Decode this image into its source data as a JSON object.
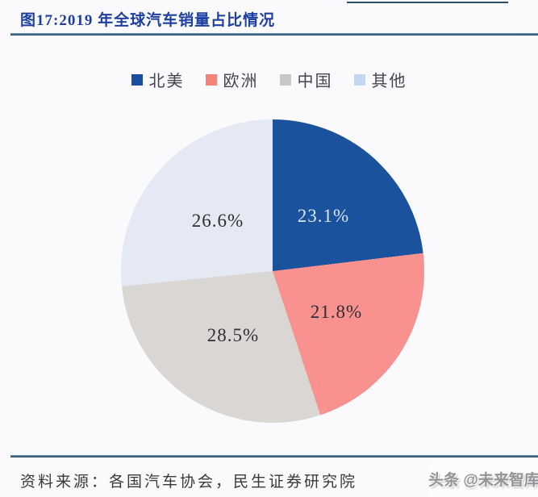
{
  "figure": {
    "title": "图17:2019 年全球汽车销量占比情况",
    "source": "资料来源：各国汽车协会，民生证券研究院",
    "watermark": "头条 @未来智库"
  },
  "legend": {
    "items": [
      {
        "label": "北美",
        "color": "#1c4da0"
      },
      {
        "label": "欧洲",
        "color": "#f4817a"
      },
      {
        "label": "中国",
        "color": "#c8c8ca"
      },
      {
        "label": "其他",
        "color": "#c3d8ee"
      }
    ]
  },
  "chart_data": {
    "type": "pie",
    "title": "2019 年全球汽车销量占比情况",
    "categories": [
      "北美",
      "欧洲",
      "中国",
      "其他"
    ],
    "values": [
      23.1,
      21.8,
      28.5,
      26.6
    ],
    "labels": [
      "23.1%",
      "21.8%",
      "28.5%",
      "26.6%"
    ],
    "colors": [
      "#1b529e",
      "#f9928f",
      "#d9d6d4",
      "#e4e9f3"
    ],
    "label_colors": [
      "#d8e5f1",
      "#2e2e34",
      "#2e2e34",
      "#2e2e34"
    ],
    "start_angle_deg": 0,
    "direction": "clockwise",
    "legend_position": "top"
  }
}
